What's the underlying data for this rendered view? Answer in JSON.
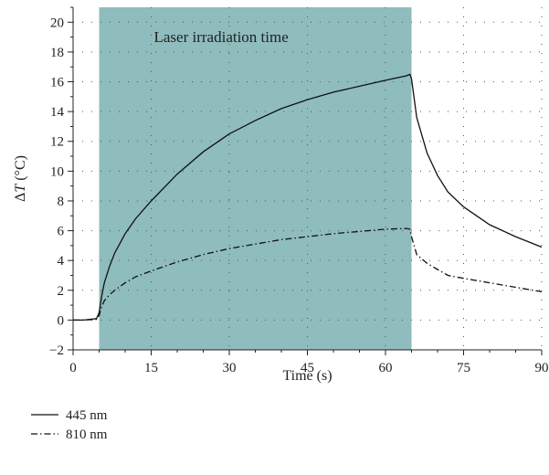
{
  "chart_data": {
    "type": "line",
    "title": "",
    "xlabel": "Time (s)",
    "ylabel_prefix": "ΔT",
    "ylabel_italic": "T",
    "ylabel_delta": "Δ",
    "ylabel_unit": " (°C)",
    "xlim": [
      0,
      90
    ],
    "ylim": [
      -2,
      21
    ],
    "xticks": [
      0,
      15,
      30,
      45,
      60,
      75,
      90
    ],
    "yticks": [
      -2,
      0,
      2,
      4,
      6,
      8,
      10,
      12,
      14,
      16,
      18,
      20
    ],
    "grid": "dotted",
    "legend_position": "bottom-left",
    "shaded_region": {
      "x_start": 5,
      "x_end": 65,
      "color": "#8fbcbd",
      "label": "Laser irradiation time"
    },
    "series": [
      {
        "name": "445 nm",
        "style": "solid",
        "x": [
          0,
          2,
          4.5,
          5,
          5.5,
          6,
          7,
          8,
          10,
          12,
          15,
          20,
          25,
          30,
          35,
          40,
          45,
          50,
          55,
          60,
          64,
          64.7,
          65,
          66,
          68,
          70,
          72,
          75,
          80,
          85,
          90
        ],
        "y": [
          0,
          0,
          0.1,
          0.5,
          1.6,
          2.5,
          3.6,
          4.5,
          5.8,
          6.8,
          8.0,
          9.8,
          11.3,
          12.5,
          13.4,
          14.2,
          14.8,
          15.3,
          15.7,
          16.1,
          16.4,
          16.5,
          16.2,
          13.6,
          11.2,
          9.7,
          8.6,
          7.6,
          6.4,
          5.6,
          4.9
        ]
      },
      {
        "name": "810 nm",
        "style": "dash-dot",
        "x": [
          0,
          2,
          4.5,
          5,
          5.5,
          6,
          7,
          8,
          10,
          12,
          15,
          20,
          25,
          30,
          35,
          40,
          45,
          50,
          55,
          60,
          64,
          64.7,
          65,
          66,
          68,
          70,
          72,
          75,
          80,
          85,
          90
        ],
        "y": [
          0,
          0,
          0.05,
          0.3,
          0.9,
          1.3,
          1.7,
          2.0,
          2.5,
          2.9,
          3.3,
          3.9,
          4.4,
          4.8,
          5.1,
          5.4,
          5.6,
          5.8,
          5.95,
          6.1,
          6.15,
          6.1,
          5.6,
          4.4,
          3.8,
          3.4,
          3.0,
          2.8,
          2.5,
          2.2,
          1.9
        ]
      }
    ]
  }
}
